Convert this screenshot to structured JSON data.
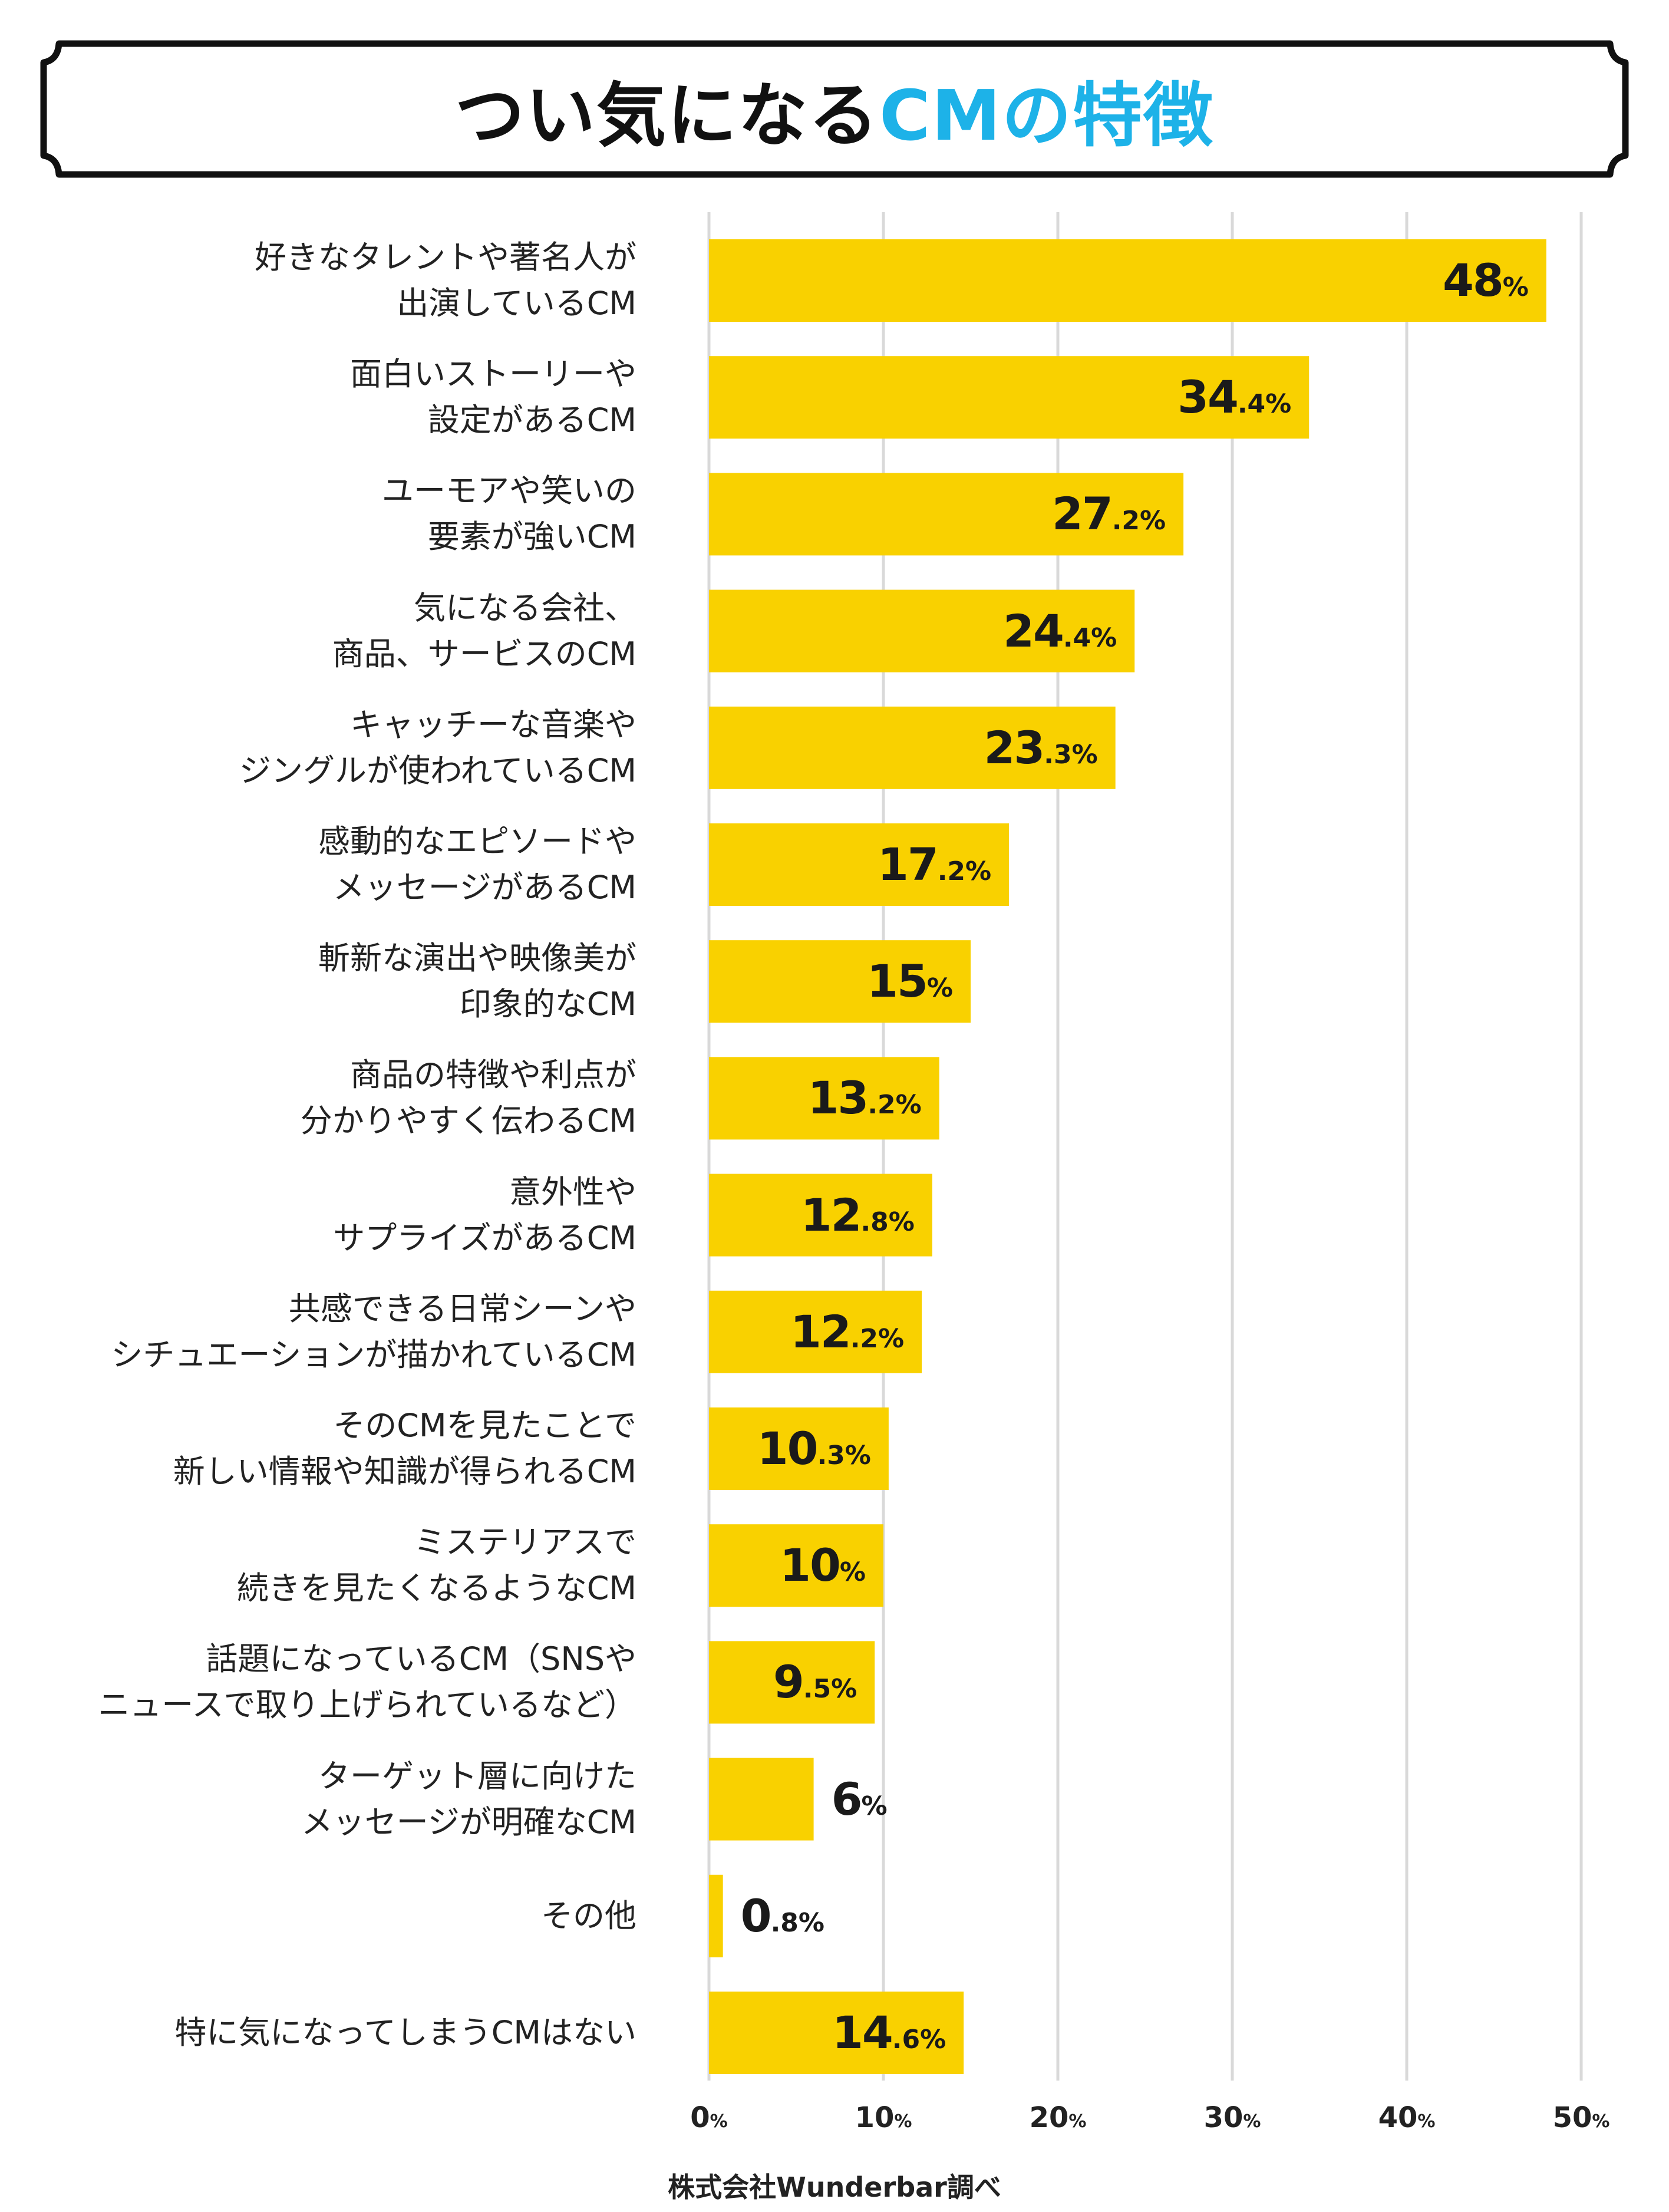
{
  "title": {
    "main": "つい気になる",
    "accent": "CMの特徴"
  },
  "colors": {
    "bar": "#f9d100",
    "grid": "#d9d9d9",
    "accent": "#1db2e8",
    "frame": "#111111"
  },
  "chart_data": {
    "type": "bar",
    "orientation": "horizontal",
    "title": "つい気になるCMの特徴",
    "xlim": [
      0,
      50
    ],
    "ticks": [
      0,
      10,
      20,
      30,
      40,
      50
    ],
    "tick_labels": [
      "0",
      "10",
      "20",
      "30",
      "40",
      "50"
    ],
    "tick_unit": "%",
    "grid": true,
    "categories": [
      [
        "好きなタレントや著名人が",
        "出演しているCM"
      ],
      [
        "面白いストーリーや",
        "設定があるCM"
      ],
      [
        "ユーモアや笑いの",
        "要素が強いCM"
      ],
      [
        "気になる会社、",
        "商品、サービスのCM"
      ],
      [
        "キャッチーな音楽や",
        "ジングルが使われているCM"
      ],
      [
        "感動的なエピソードや",
        "メッセージがあるCM"
      ],
      [
        "斬新な演出や映像美が",
        "印象的なCM"
      ],
      [
        "商品の特徴や利点が",
        "分かりやすく伝わるCM"
      ],
      [
        "意外性や",
        "サプライズがあるCM"
      ],
      [
        "共感できる日常シーンや",
        "シチュエーションが描かれているCM"
      ],
      [
        "そのCMを見たことで",
        "新しい情報や知識が得られるCM"
      ],
      [
        "ミステリアスで",
        "続きを見たくなるようなCM"
      ],
      [
        "話題になっているCM（SNSや",
        "ニュースで取り上げられているなど）"
      ],
      [
        "ターゲット層に向けた",
        "メッセージが明確なCM"
      ],
      [
        "その他"
      ],
      [
        "特に気になってしまうCMはない"
      ]
    ],
    "values": [
      48,
      34.4,
      27.2,
      24.4,
      23.3,
      17.2,
      15,
      13.2,
      12.8,
      12.2,
      10.3,
      10,
      9.5,
      6,
      0.8,
      14.6
    ],
    "value_labels": [
      [
        "48",
        ""
      ],
      [
        "34",
        ".4"
      ],
      [
        "27",
        ".2"
      ],
      [
        "24",
        ".4"
      ],
      [
        "23",
        ".3"
      ],
      [
        "17",
        ".2"
      ],
      [
        "15",
        ""
      ],
      [
        "13",
        ".2"
      ],
      [
        "12",
        ".8"
      ],
      [
        "12",
        ".2"
      ],
      [
        "10",
        ".3"
      ],
      [
        "10",
        ""
      ],
      [
        "9",
        ".5"
      ],
      [
        "6",
        ""
      ],
      [
        "0",
        ".8"
      ],
      [
        "14",
        ".6"
      ]
    ],
    "label_inside_threshold": 9
  },
  "source": "株式会社Wunderbar調べ"
}
